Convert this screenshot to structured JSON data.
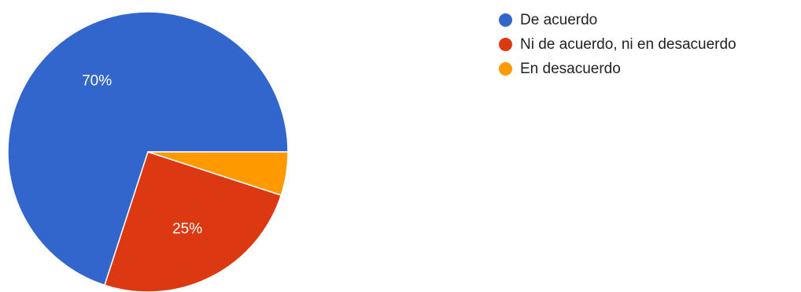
{
  "chart_data": {
    "type": "pie",
    "categories": [
      "De acuerdo",
      "Ni de acuerdo, ni en desacuerdo",
      "En desacuerdo"
    ],
    "values": [
      70,
      25,
      5
    ],
    "slice_labels": [
      "70%",
      "25%",
      ""
    ],
    "colors": [
      "#3366cc",
      "#dc3912",
      "#ff9900"
    ],
    "legend": "right",
    "start_angle": "3 o'clock",
    "direction": "counterclockwise"
  }
}
